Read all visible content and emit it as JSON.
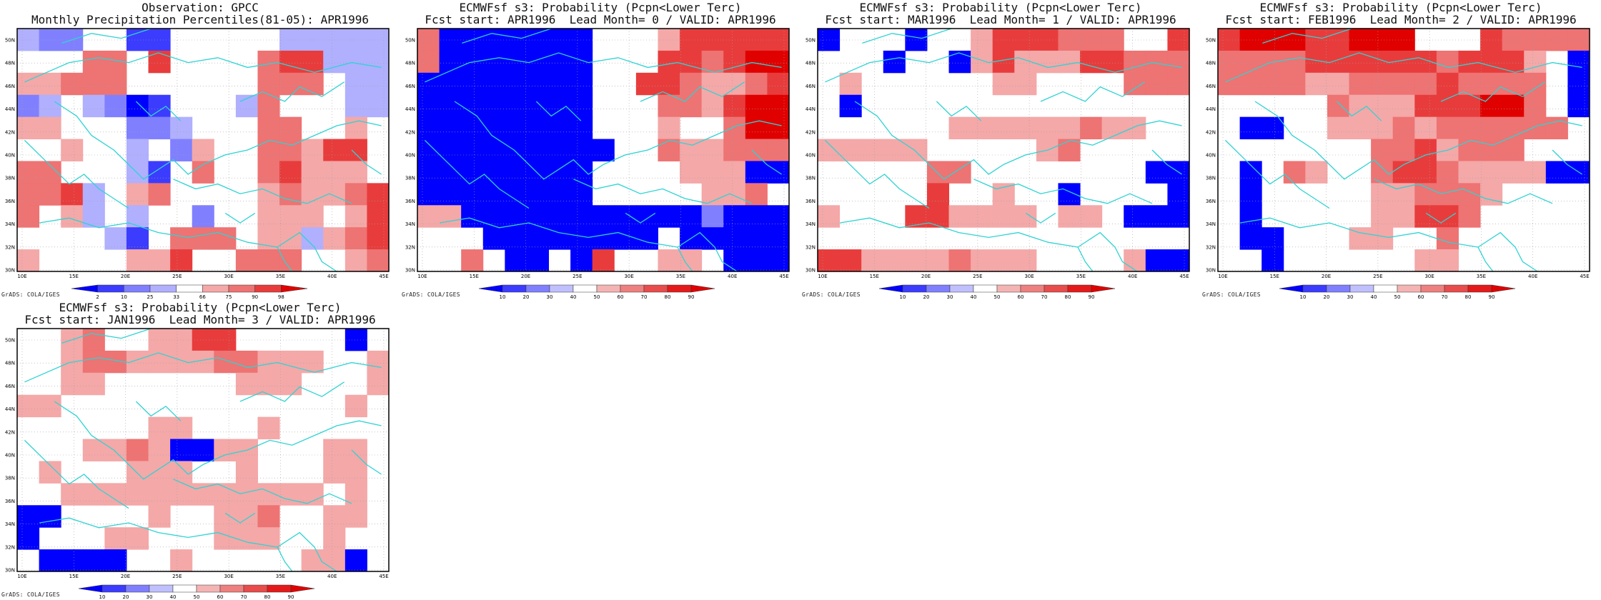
{
  "panels": [
    {
      "title1": "Observation: GPCC",
      "title2": "Monthly Precipitation Percentiles(81-05): APR1996",
      "colorbar": {
        "labels": [
          "2",
          "10",
          "25",
          "33",
          "66",
          "75",
          "90",
          "98"
        ]
      },
      "credit": "GrADS: COLA/IGES"
    },
    {
      "title1": "ECMWFsf s3: Probability (Pcpn<Lower Terc)",
      "title2": "Fcst start: APR1996  Lead Month= 0 / VALID: APR1996",
      "colorbar": {
        "labels": [
          "10",
          "20",
          "30",
          "40",
          "50",
          "60",
          "70",
          "80",
          "90"
        ]
      },
      "credit": "GrADS: COLA/IGES"
    },
    {
      "title1": "ECMWFsf s3: Probability (Pcpn<Lower Terc)",
      "title2": "Fcst start: MAR1996  Lead Month= 1 / VALID: APR1996",
      "colorbar": {
        "labels": [
          "10",
          "20",
          "30",
          "40",
          "50",
          "60",
          "70",
          "80",
          "90"
        ]
      },
      "credit": "GrADS: COLA/IGES"
    },
    {
      "title1": "ECMWFsf s3: Probability (Pcpn<Lower Terc)",
      "title2": "Fcst start: FEB1996  Lead Month= 2 / VALID: APR1996",
      "colorbar": {
        "labels": [
          "10",
          "20",
          "30",
          "40",
          "50",
          "60",
          "70",
          "80",
          "90"
        ]
      },
      "credit": "GrADS: COLA/IGES"
    },
    {
      "title1": "ECMWFsf s3: Probability (Pcpn<Lower Terc)",
      "title2": "Fcst start: JAN1996  Lead Month= 3 / VALID: APR1996",
      "colorbar": {
        "labels": [
          "10",
          "20",
          "30",
          "40",
          "50",
          "60",
          "70",
          "80",
          "90"
        ]
      },
      "credit": "GrADS: COLA/IGES"
    }
  ],
  "axes": {
    "lon_ticks": [
      "10E",
      "15E",
      "20E",
      "25E",
      "30E",
      "35E",
      "40E",
      "45E"
    ],
    "lat_ticks": [
      "30N",
      "32N",
      "34N",
      "36N",
      "38N",
      "40N",
      "42N",
      "44N",
      "46N",
      "48N",
      "50N"
    ]
  },
  "colors": {
    "coast": "#2fd3d3",
    "grid": "#a0a0a0",
    "deep_blue": "#0000ff",
    "mid_blue": "#3c3cff",
    "light_blue": "#8080ff",
    "pale_blue": "#b0b0ff",
    "pale_red": "#f4a8a8",
    "light_red": "#ee7373",
    "mid_red": "#e83c3c",
    "deep_red": "#e00000"
  }
}
